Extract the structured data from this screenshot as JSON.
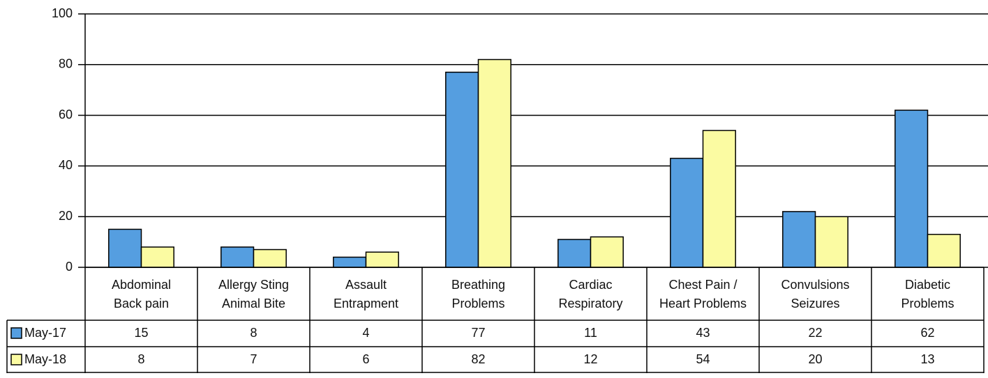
{
  "chart_data": {
    "type": "bar",
    "categories": [
      [
        "Abdominal",
        "Back pain"
      ],
      [
        "Allergy Sting",
        "Animal Bite"
      ],
      [
        "Assault",
        "Entrapment"
      ],
      [
        "Breathing",
        "Problems"
      ],
      [
        "Cardiac",
        "Respiratory"
      ],
      [
        "Chest Pain /",
        "Heart Problems"
      ],
      [
        "Convulsions",
        "Seizures"
      ],
      [
        "Diabetic",
        "Problems"
      ]
    ],
    "series": [
      {
        "name": "May-17",
        "color": "#559ee0",
        "values": [
          15,
          8,
          4,
          77,
          11,
          43,
          22,
          62
        ]
      },
      {
        "name": "May-18",
        "color": "#fbfba2",
        "values": [
          8,
          7,
          6,
          82,
          12,
          54,
          20,
          13
        ]
      }
    ],
    "ylim": [
      0,
      100
    ],
    "yticks": [
      0,
      20,
      40,
      60,
      80,
      100
    ],
    "grid": true,
    "data_table": true
  }
}
